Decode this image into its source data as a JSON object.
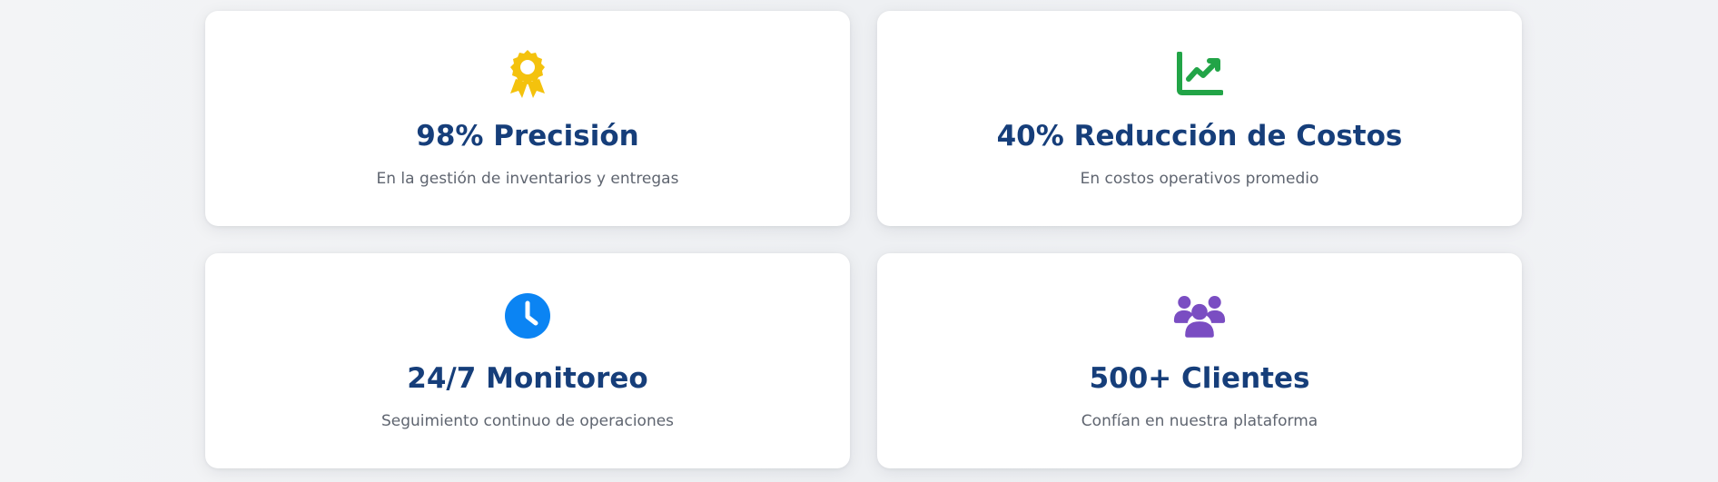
{
  "stats": [
    {
      "icon": "award-icon",
      "icon_color": "#f4c20d",
      "title": "98% Precisión",
      "description": "En la gestión de inventarios y entregas"
    },
    {
      "icon": "chart-line-icon",
      "icon_color": "#22a447",
      "title": "40% Reducción de Costos",
      "description": "En costos operativos promedio"
    },
    {
      "icon": "clock-icon",
      "icon_color": "#0b84f3",
      "title": "24/7 Monitoreo",
      "description": "Seguimiento continuo de operaciones"
    },
    {
      "icon": "users-icon",
      "icon_color": "#7a4dc2",
      "title": "500+ Clientes",
      "description": "Confían en nuestra plataforma"
    }
  ]
}
